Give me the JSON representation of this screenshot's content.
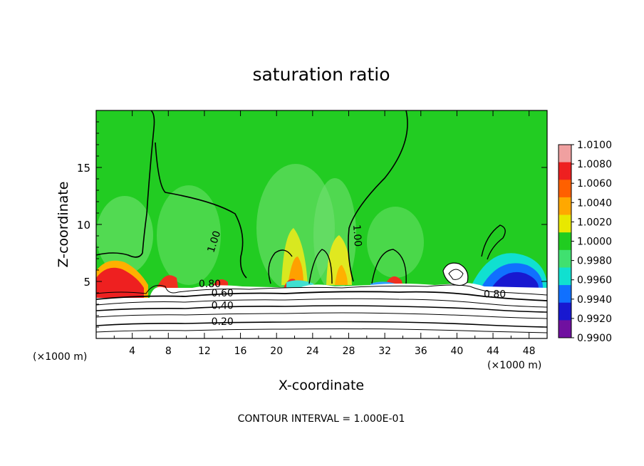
{
  "chart_data": {
    "type": "heatmap",
    "title": "saturation ratio",
    "xlabel": "X-coordinate",
    "ylabel": "Z-coordinate",
    "x_unit_left": "(×1000 m)",
    "x_unit_right": "(×1000 m)",
    "xlim": [
      0,
      50
    ],
    "ylim": [
      0,
      20
    ],
    "x_ticks": [
      4,
      8,
      12,
      16,
      20,
      24,
      28,
      32,
      36,
      40,
      44,
      48
    ],
    "y_ticks": [
      5,
      10,
      15
    ],
    "footer": "CONTOUR INTERVAL = 1.000E-01",
    "colorbar": {
      "levels": [
        1.01,
        1.008,
        1.006,
        1.004,
        1.002,
        1.0,
        0.998,
        0.996,
        0.994,
        0.992,
        0.99
      ],
      "labels": [
        "1.0100",
        "1.0080",
        "1.0060",
        "1.0040",
        "1.0020",
        "1.0000",
        "0.9980",
        "0.9960",
        "0.9940",
        "0.9920",
        "0.9900"
      ],
      "colors": [
        "#f0a0a0",
        "#ee2020",
        "#ff6000",
        "#ffa800",
        "#e8e800",
        "#20cc20",
        "#40e070",
        "#10e0d0",
        "#1070ff",
        "#1818d0",
        "#7010a0"
      ]
    },
    "contour_labels": [
      {
        "text": "1.00",
        "x": 13.4,
        "z": 8.4,
        "rot": -72
      },
      {
        "text": "1.00",
        "x": 28.6,
        "z": 9.0,
        "rot": 86
      },
      {
        "text": "0.80",
        "x": 12.6,
        "z": 4.5,
        "rot": 0
      },
      {
        "text": "0.60",
        "x": 14.0,
        "z": 3.7,
        "rot": 0
      },
      {
        "text": "0.40",
        "x": 14.0,
        "z": 2.6,
        "rot": 0
      },
      {
        "text": "0.20",
        "x": 14.0,
        "z": 1.2,
        "rot": 0
      },
      {
        "text": "0.80",
        "x": 44.2,
        "z": 3.6,
        "rot": 0
      }
    ]
  }
}
